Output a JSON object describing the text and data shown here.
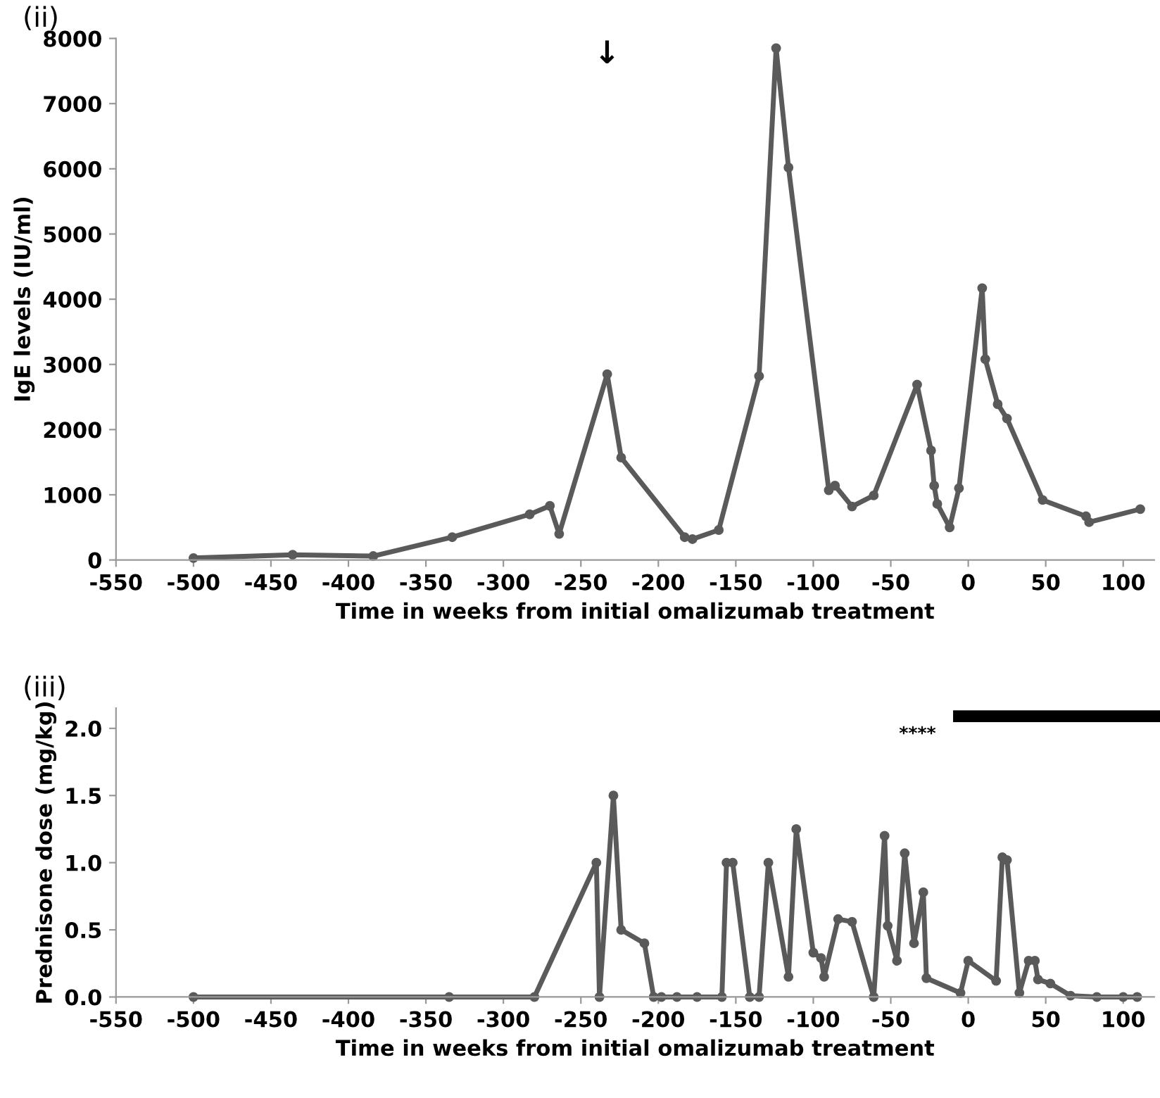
{
  "chart_data": [
    {
      "type": "line",
      "title": "(ii)",
      "xlabel": "Time in weeks from initial omalizumab treatment",
      "ylabel": "IgE levels (IU/ml)",
      "series": [
        {
          "color": "#5a5a5a",
          "x": [
            -500,
            -436,
            -384,
            -333,
            -283,
            -270,
            -264,
            -233,
            -224,
            -183,
            -178,
            -161,
            -135,
            -124,
            -116,
            -90,
            -86,
            -75,
            -61,
            -33,
            -24,
            -22,
            -20,
            -12,
            -6,
            9,
            11,
            19,
            25,
            48,
            76,
            78,
            111
          ],
          "values": [
            30,
            80,
            60,
            350,
            700,
            830,
            400,
            2850,
            1570,
            350,
            320,
            460,
            2820,
            7850,
            6020,
            1070,
            1140,
            820,
            990,
            2690,
            1680,
            1140,
            860,
            500,
            1100,
            4170,
            3080,
            2390,
            2170,
            920,
            670,
            580,
            780
          ]
        }
      ],
      "xlim": [
        -550,
        120
      ],
      "xticks": [
        -550,
        -500,
        -450,
        -400,
        -350,
        -300,
        -250,
        -200,
        -150,
        -100,
        -50,
        0,
        50,
        100
      ],
      "ylim": [
        0,
        8000
      ],
      "yticks": [
        0,
        1000,
        2000,
        3000,
        4000,
        5000,
        6000,
        7000,
        8000
      ],
      "annotations": [
        "↓"
      ],
      "marker": "circle",
      "line_style": "solid",
      "grid": false,
      "legend": false
    },
    {
      "type": "line",
      "title": "(iii)",
      "xlabel": "Time in weeks from initial omalizumab treatment",
      "ylabel": "Prednisone dose (mg/kg)",
      "series": [
        {
          "color": "#5a5a5a",
          "x": [
            -500,
            -335,
            -280,
            -240,
            -238,
            -229,
            -224,
            -209,
            -203,
            -198,
            -188,
            -175,
            -159,
            -156,
            -152,
            -141,
            -135,
            -129,
            -116,
            -111,
            -100,
            -95,
            -93,
            -84,
            -75,
            -61,
            -54,
            -52,
            -46,
            -41,
            -35,
            -29,
            -27,
            -5,
            0,
            18,
            22,
            25,
            33,
            39,
            43,
            45,
            53,
            66,
            83,
            100,
            109
          ],
          "values": [
            0,
            0,
            0,
            1.0,
            0,
            1.5,
            0.5,
            0.4,
            0,
            0,
            0,
            0,
            0,
            1.0,
            1.0,
            0,
            0,
            1.0,
            0.15,
            1.25,
            0.33,
            0.29,
            0.15,
            0.58,
            0.56,
            0,
            1.2,
            0.53,
            0.27,
            1.07,
            0.4,
            0.78,
            0.14,
            0.03,
            0.27,
            0.12,
            1.04,
            1.02,
            0.03,
            0.27,
            0.27,
            0.13,
            0.1,
            0.01,
            0,
            0,
            0
          ]
        },
        {
          "color": "#000000",
          "type": "line",
          "marker": "none",
          "x": [
            -6,
            120
          ],
          "values": [
            2.09,
            2.09
          ]
        }
      ],
      "xlim": [
        -550,
        120
      ],
      "xticks": [
        -550,
        -500,
        -450,
        -400,
        -350,
        -300,
        -250,
        -200,
        -150,
        -100,
        -50,
        0,
        50,
        100
      ],
      "ylim": [
        0,
        2.15
      ],
      "yticks": [
        {
          "value": 0,
          "label": "0.0"
        },
        {
          "value": 0.5,
          "label": "0.5"
        },
        {
          "value": 1.0,
          "label": "1.0"
        },
        {
          "value": 1.5,
          "label": "1.5"
        },
        {
          "value": 2.0,
          "label": "2.0"
        }
      ],
      "annotations": [
        "****"
      ],
      "marker": "circle",
      "line_style": "solid",
      "grid": false,
      "legend": false
    }
  ]
}
